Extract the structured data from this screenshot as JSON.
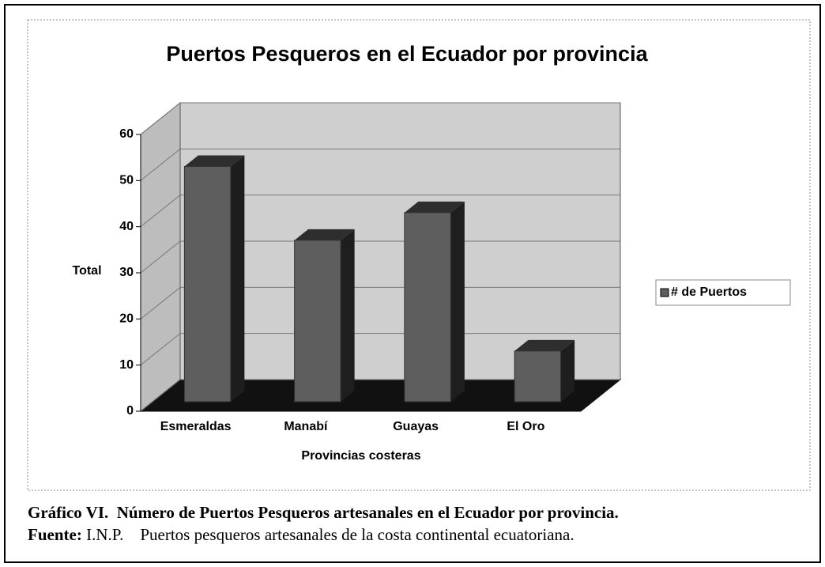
{
  "chart_data": {
    "type": "bar",
    "title": "Puertos Pesqueros en el Ecuador por provincia",
    "x_label": "Provincias costeras",
    "y_label": "Total",
    "categories": [
      "Esmeraldas",
      "Manabí",
      "Guayas",
      "El Oro"
    ],
    "series": [
      {
        "name": "# de Puertos",
        "color": "#5e5e5e",
        "values": [
          51,
          35,
          41,
          11
        ]
      }
    ],
    "ylim": [
      0,
      60
    ],
    "yticks": [
      0,
      10,
      20,
      30,
      40,
      50,
      60
    ],
    "grid": true,
    "legend": "right"
  },
  "caption": {
    "label": "Gráfico VI.",
    "text": "Número de Puertos Pesqueros artesanales en el Ecuador por provincia."
  },
  "source": {
    "label": "Fuente:",
    "org": "I.N.P.",
    "text": "Puertos pesqueros artesanales de la costa continental ecuatoriana."
  }
}
